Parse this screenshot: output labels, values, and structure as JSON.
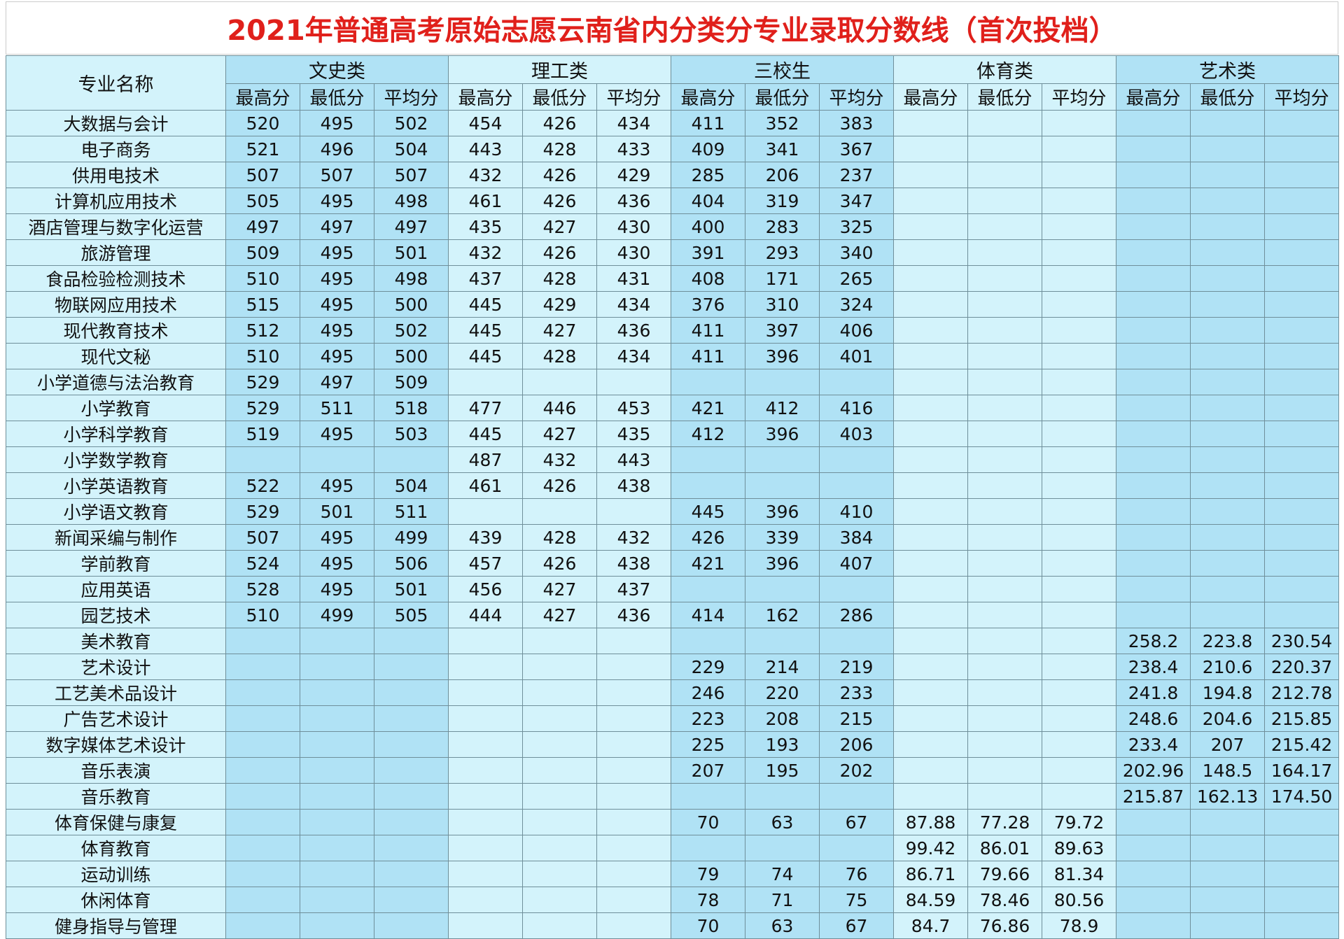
{
  "header": {
    "title": "2021年普通高考原始志愿云南省内分类分专业录取分数线（首次投档）"
  },
  "table": {
    "name_header": "专业名称",
    "groups": [
      {
        "name": "文史类",
        "columns": [
          "最高分",
          "最低分",
          "平均分"
        ]
      },
      {
        "name": "理工类",
        "columns": [
          "最高分",
          "最低分",
          "平均分"
        ]
      },
      {
        "name": "三校生",
        "columns": [
          "最高分",
          "最低分",
          "平均分"
        ]
      },
      {
        "name": "体育类",
        "columns": [
          "最高分",
          "最低分",
          "平均分"
        ]
      },
      {
        "name": "艺术类",
        "columns": [
          "最高分",
          "最低分",
          "平均分"
        ]
      }
    ],
    "rows": [
      [
        "大数据与会计",
        "520",
        "495",
        "502",
        "454",
        "426",
        "434",
        "411",
        "352",
        "383",
        null,
        null,
        null,
        null,
        null,
        null
      ],
      [
        "电子商务",
        "521",
        "496",
        "504",
        "443",
        "428",
        "433",
        "409",
        "341",
        "367",
        null,
        null,
        null,
        null,
        null,
        null
      ],
      [
        "供用电技术",
        "507",
        "507",
        "507",
        "432",
        "426",
        "429",
        "285",
        "206",
        "237",
        null,
        null,
        null,
        null,
        null,
        null
      ],
      [
        "计算机应用技术",
        "505",
        "495",
        "498",
        "461",
        "426",
        "436",
        "404",
        "319",
        "347",
        null,
        null,
        null,
        null,
        null,
        null
      ],
      [
        "酒店管理与数字化运营",
        "497",
        "497",
        "497",
        "435",
        "427",
        "430",
        "400",
        "283",
        "325",
        null,
        null,
        null,
        null,
        null,
        null
      ],
      [
        "旅游管理",
        "509",
        "495",
        "501",
        "432",
        "426",
        "430",
        "391",
        "293",
        "340",
        null,
        null,
        null,
        null,
        null,
        null
      ],
      [
        "食品检验检测技术",
        "510",
        "495",
        "498",
        "437",
        "428",
        "431",
        "408",
        "171",
        "265",
        null,
        null,
        null,
        null,
        null,
        null
      ],
      [
        "物联网应用技术",
        "515",
        "495",
        "500",
        "445",
        "429",
        "434",
        "376",
        "310",
        "324",
        null,
        null,
        null,
        null,
        null,
        null
      ],
      [
        "现代教育技术",
        "512",
        "495",
        "502",
        "445",
        "427",
        "436",
        "411",
        "397",
        "406",
        null,
        null,
        null,
        null,
        null,
        null
      ],
      [
        "现代文秘",
        "510",
        "495",
        "500",
        "445",
        "428",
        "434",
        "411",
        "396",
        "401",
        null,
        null,
        null,
        null,
        null,
        null
      ],
      [
        "小学道德与法治教育",
        "529",
        "497",
        "509",
        null,
        null,
        null,
        null,
        null,
        null,
        null,
        null,
        null,
        null,
        null,
        null
      ],
      [
        "小学教育",
        "529",
        "511",
        "518",
        "477",
        "446",
        "453",
        "421",
        "412",
        "416",
        null,
        null,
        null,
        null,
        null,
        null
      ],
      [
        "小学科学教育",
        "519",
        "495",
        "503",
        "445",
        "427",
        "435",
        "412",
        "396",
        "403",
        null,
        null,
        null,
        null,
        null,
        null
      ],
      [
        "小学数学教育",
        null,
        null,
        null,
        "487",
        "432",
        "443",
        null,
        null,
        null,
        null,
        null,
        null,
        null,
        null,
        null
      ],
      [
        "小学英语教育",
        "522",
        "495",
        "504",
        "461",
        "426",
        "438",
        null,
        null,
        null,
        null,
        null,
        null,
        null,
        null,
        null
      ],
      [
        "小学语文教育",
        "529",
        "501",
        "511",
        null,
        null,
        null,
        "445",
        "396",
        "410",
        null,
        null,
        null,
        null,
        null,
        null
      ],
      [
        "新闻采编与制作",
        "507",
        "495",
        "499",
        "439",
        "428",
        "432",
        "426",
        "339",
        "384",
        null,
        null,
        null,
        null,
        null,
        null
      ],
      [
        "学前教育",
        "524",
        "495",
        "506",
        "457",
        "426",
        "438",
        "421",
        "396",
        "407",
        null,
        null,
        null,
        null,
        null,
        null
      ],
      [
        "应用英语",
        "528",
        "495",
        "501",
        "456",
        "427",
        "437",
        null,
        null,
        null,
        null,
        null,
        null,
        null,
        null,
        null
      ],
      [
        "园艺技术",
        "510",
        "499",
        "505",
        "444",
        "427",
        "436",
        "414",
        "162",
        "286",
        null,
        null,
        null,
        null,
        null,
        null
      ],
      [
        "美术教育",
        null,
        null,
        null,
        null,
        null,
        null,
        null,
        null,
        null,
        null,
        null,
        null,
        "258.2",
        "223.8",
        "230.54"
      ],
      [
        "艺术设计",
        null,
        null,
        null,
        null,
        null,
        null,
        "229",
        "214",
        "219",
        null,
        null,
        null,
        "238.4",
        "210.6",
        "220.37"
      ],
      [
        "工艺美术品设计",
        null,
        null,
        null,
        null,
        null,
        null,
        "246",
        "220",
        "233",
        null,
        null,
        null,
        "241.8",
        "194.8",
        "212.78"
      ],
      [
        "广告艺术设计",
        null,
        null,
        null,
        null,
        null,
        null,
        "223",
        "208",
        "215",
        null,
        null,
        null,
        "248.6",
        "204.6",
        "215.85"
      ],
      [
        "数字媒体艺术设计",
        null,
        null,
        null,
        null,
        null,
        null,
        "225",
        "193",
        "206",
        null,
        null,
        null,
        "233.4",
        "207",
        "215.42"
      ],
      [
        "音乐表演",
        null,
        null,
        null,
        null,
        null,
        null,
        "207",
        "195",
        "202",
        null,
        null,
        null,
        "202.96",
        "148.5",
        "164.17"
      ],
      [
        "音乐教育",
        null,
        null,
        null,
        null,
        null,
        null,
        null,
        null,
        null,
        null,
        null,
        null,
        "215.87",
        "162.13",
        "174.50"
      ],
      [
        "体育保健与康复",
        null,
        null,
        null,
        null,
        null,
        null,
        "70",
        "63",
        "67",
        "87.88",
        "77.28",
        "79.72",
        null,
        null,
        null
      ],
      [
        "体育教育",
        null,
        null,
        null,
        null,
        null,
        null,
        null,
        null,
        null,
        "99.42",
        "86.01",
        "89.63",
        null,
        null,
        null
      ],
      [
        "运动训练",
        null,
        null,
        null,
        null,
        null,
        null,
        "79",
        "74",
        "76",
        "86.71",
        "79.66",
        "81.34",
        null,
        null,
        null
      ],
      [
        "休闲体育",
        null,
        null,
        null,
        null,
        null,
        null,
        "78",
        "71",
        "75",
        "84.59",
        "78.46",
        "80.56",
        null,
        null,
        null
      ],
      [
        "健身指导与管理",
        null,
        null,
        null,
        null,
        null,
        null,
        "70",
        "63",
        "67",
        "84.7",
        "76.86",
        "78.9",
        null,
        null,
        null
      ]
    ]
  }
}
